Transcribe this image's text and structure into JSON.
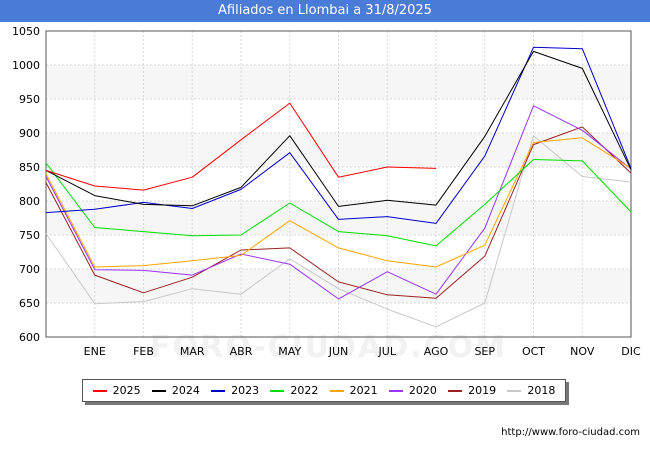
{
  "title": "Afiliados en Llombai a 31/8/2025",
  "footer": "http://www.foro-ciudad.com",
  "watermark": "FORO-CIUDAD.COM",
  "chart_data": {
    "type": "line",
    "title": "Afiliados en Llombai a 31/8/2025",
    "categories": [
      "",
      "ENE",
      "FEB",
      "MAR",
      "ABR",
      "MAY",
      "JUN",
      "JUL",
      "AGO",
      "SEP",
      "OCT",
      "NOV",
      "DIC"
    ],
    "ylim": [
      600,
      1050
    ],
    "yticks": [
      600,
      650,
      700,
      750,
      800,
      850,
      900,
      950,
      1000,
      1050
    ],
    "grid": true,
    "legend_position": "bottom",
    "series": [
      {
        "name": "2025",
        "color": "#ff0000",
        "values": [
          845,
          822,
          816,
          835,
          890,
          944,
          835,
          850,
          848,
          null,
          null,
          null,
          null
        ]
      },
      {
        "name": "2024",
        "color": "#000000",
        "values": [
          845,
          808,
          795,
          793,
          820,
          896,
          792,
          801,
          794,
          895,
          1020,
          995,
          846
        ]
      },
      {
        "name": "2023",
        "color": "#0000cc",
        "values": [
          783,
          788,
          798,
          789,
          817,
          871,
          773,
          777,
          767,
          866,
          1026,
          1024,
          848
        ]
      },
      {
        "name": "2022",
        "color": "#00dd00",
        "values": [
          856,
          761,
          755,
          749,
          750,
          797,
          755,
          749,
          734,
          795,
          861,
          859,
          784
        ]
      },
      {
        "name": "2021",
        "color": "#ffa500",
        "values": [
          840,
          703,
          705,
          712,
          720,
          771,
          731,
          712,
          703,
          735,
          886,
          893,
          848
        ]
      },
      {
        "name": "2020",
        "color": "#9933ff",
        "values": [
          836,
          699,
          698,
          691,
          722,
          707,
          656,
          696,
          663,
          760,
          940,
          904,
          847
        ]
      },
      {
        "name": "2019",
        "color": "#992222",
        "values": [
          827,
          691,
          665,
          688,
          728,
          731,
          681,
          662,
          657,
          719,
          883,
          909,
          841
        ]
      },
      {
        "name": "2018",
        "color": "#c8c8c8",
        "values": [
          752,
          649,
          652,
          671,
          663,
          715,
          671,
          641,
          615,
          650,
          896,
          836,
          828
        ]
      }
    ]
  }
}
